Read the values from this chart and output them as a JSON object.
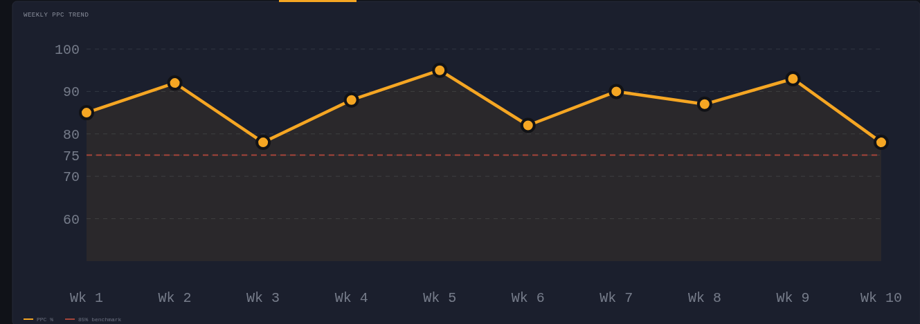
{
  "chart_data": {
    "type": "area",
    "title": "WEEKLY PPC TREND",
    "categories": [
      "Wk 1",
      "Wk 2",
      "Wk 3",
      "Wk 4",
      "Wk 5",
      "Wk 6",
      "Wk 7",
      "Wk 8",
      "Wk 9",
      "Wk 10"
    ],
    "series": [
      {
        "name": "PPC %",
        "color": "#f5a623",
        "values": [
          85,
          92,
          78,
          88,
          95,
          82,
          90,
          87,
          93,
          78
        ]
      }
    ],
    "ylim": [
      50,
      100
    ],
    "yticks": [
      60,
      70,
      75,
      80,
      90,
      100
    ],
    "grid": "y",
    "marker": "circle",
    "legend": "bottom left",
    "ref_lines": [
      {
        "axis": "y",
        "value": 75,
        "label": "85% benchmark",
        "color": "#a6453a",
        "line_style": "dashed"
      }
    ]
  }
}
